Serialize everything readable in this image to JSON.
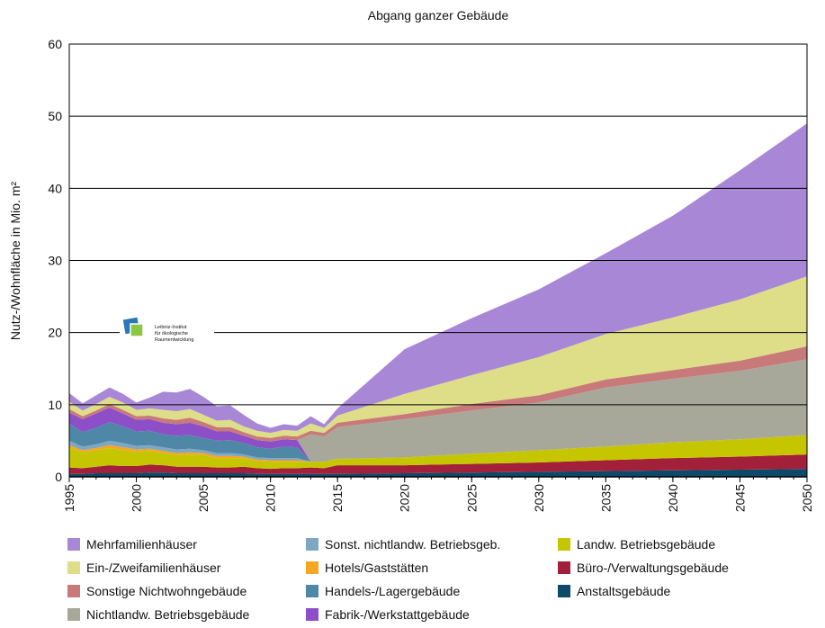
{
  "chart_data": {
    "type": "stacked_area",
    "title": "Abgang ganzer Gebäude",
    "ylabel": "Nutz-/Wohnfläche in Mio. m²",
    "logo": [
      "Leibniz-Institut",
      "für ökologische",
      "Raumentwicklung"
    ],
    "x": [
      1995,
      1996,
      1997,
      1998,
      1999,
      2000,
      2001,
      2002,
      2003,
      2004,
      2005,
      2006,
      2007,
      2008,
      2009,
      2010,
      2011,
      2012,
      2013,
      2014,
      2015,
      2020,
      2025,
      2030,
      2035,
      2040,
      2045,
      2050
    ],
    "xlim": [
      1995,
      2050
    ],
    "xticks": [
      1995,
      2000,
      2005,
      2010,
      2015,
      2020,
      2025,
      2030,
      2035,
      2040,
      2045,
      2050
    ],
    "ylim": [
      0,
      60
    ],
    "yticks": [
      0,
      10,
      20,
      30,
      40,
      50,
      60
    ],
    "grid": true,
    "series": [
      {
        "name": "Anstaltsgebäude",
        "color": "#0d4a6a",
        "values": [
          0.4,
          0.4,
          0.5,
          0.5,
          0.5,
          0.5,
          0.6,
          0.6,
          0.5,
          0.5,
          0.5,
          0.5,
          0.5,
          0.5,
          0.4,
          0.4,
          0.4,
          0.4,
          0.4,
          0.4,
          0.4,
          0.5,
          0.6,
          0.7,
          0.8,
          0.9,
          1.0,
          1.1
        ]
      },
      {
        "name": "Büro-/Verwaltungsgebäude",
        "color": "#a3203a",
        "values": [
          0.9,
          0.8,
          0.9,
          1.1,
          1.0,
          1.0,
          1.1,
          1.0,
          0.9,
          0.9,
          0.9,
          0.8,
          0.8,
          0.9,
          0.8,
          0.7,
          0.8,
          0.8,
          0.9,
          0.8,
          1.2,
          1.1,
          1.2,
          1.3,
          1.5,
          1.7,
          1.8,
          2.0
        ]
      },
      {
        "name": "Landw. Betriebsgebäude",
        "color": "#c6c600",
        "values": [
          2.7,
          2.2,
          2.3,
          2.4,
          2.2,
          2.0,
          1.9,
          1.7,
          1.6,
          1.7,
          1.6,
          1.3,
          1.3,
          1.2,
          1.0,
          1.0,
          0.9,
          0.9,
          0.8,
          0.9,
          0.9,
          1.1,
          1.4,
          1.7,
          1.9,
          2.2,
          2.4,
          2.7
        ]
      },
      {
        "name": "Hotels/Gaststätten",
        "color": "#f5a623",
        "values": [
          0.4,
          0.3,
          0.3,
          0.4,
          0.4,
          0.3,
          0.3,
          0.3,
          0.3,
          0.3,
          0.3,
          0.3,
          0.3,
          0.2,
          0.2,
          0.2,
          0.2,
          0.2,
          0,
          0,
          0,
          0,
          0,
          0,
          0,
          0,
          0,
          0
        ]
      },
      {
        "name": "Sonst. nichtlandw. Betriebsgeb.",
        "color": "#7fa6c2",
        "values": [
          0.6,
          0.5,
          0.5,
          0.6,
          0.6,
          0.5,
          0.5,
          0.5,
          0.5,
          0.5,
          0.4,
          0.4,
          0.4,
          0.3,
          0.3,
          0.3,
          0.3,
          0.3,
          0,
          0,
          0,
          0,
          0,
          0,
          0,
          0,
          0,
          0
        ]
      },
      {
        "name": "Handels-/Lagergebäude",
        "color": "#4e88a6",
        "values": [
          2.4,
          2.0,
          2.3,
          2.6,
          2.3,
          2.0,
          2.0,
          1.8,
          1.9,
          1.9,
          1.7,
          1.7,
          1.8,
          1.6,
          1.4,
          1.3,
          1.6,
          1.5,
          0,
          0,
          0,
          0,
          0,
          0,
          0,
          0,
          0,
          0
        ]
      },
      {
        "name": "Fabrik-/Werkstattgebäude",
        "color": "#8c4fc7",
        "values": [
          1.5,
          1.8,
          2.0,
          2.0,
          1.8,
          1.6,
          1.6,
          1.6,
          1.6,
          1.7,
          1.6,
          1.3,
          1.2,
          1.0,
          1.0,
          1.0,
          1.0,
          1.0,
          0,
          0,
          0,
          0,
          0,
          0,
          0,
          0,
          0,
          0
        ]
      },
      {
        "name": "Nichtlandw. Betriebsgebäude",
        "color": "#a8a89a",
        "values": [
          0,
          0,
          0,
          0,
          0,
          0,
          0,
          0,
          0,
          0,
          0,
          0,
          0,
          0,
          0,
          0,
          0,
          0,
          3.8,
          3.5,
          4.4,
          5.3,
          6.0,
          6.6,
          8.2,
          8.8,
          9.5,
          10.5
        ]
      },
      {
        "name": "Sonstige Nichtwohngebäude",
        "color": "#c87a7a",
        "values": [
          0.5,
          0.4,
          0.4,
          0.5,
          0.5,
          0.5,
          0.5,
          0.6,
          0.6,
          0.7,
          0.6,
          0.6,
          0.6,
          0.5,
          0.5,
          0.5,
          0.5,
          0.5,
          0.5,
          0.5,
          0.6,
          0.7,
          0.9,
          1.0,
          1.1,
          1.2,
          1.4,
          1.8
        ]
      },
      {
        "name": "Ein-/Zweifamilienhäuser",
        "color": "#dedd88",
        "values": [
          1.0,
          0.8,
          0.9,
          1.0,
          1.0,
          0.9,
          1.0,
          1.2,
          1.2,
          1.2,
          1.0,
          0.9,
          1.0,
          0.8,
          0.8,
          0.7,
          0.8,
          0.8,
          1.0,
          0.7,
          1.0,
          2.8,
          4.0,
          5.3,
          6.3,
          7.3,
          8.5,
          9.7
        ]
      },
      {
        "name": "Mehrfamilienhäuser",
        "color": "#a887d6",
        "values": [
          1.2,
          1.0,
          1.2,
          1.3,
          1.2,
          1.0,
          1.5,
          2.5,
          2.6,
          2.8,
          2.5,
          2.0,
          2.0,
          1.6,
          1.0,
          0.7,
          0.8,
          0.7,
          1.0,
          0.5,
          1.0,
          6.2,
          7.9,
          9.4,
          11.2,
          14.1,
          17.9,
          21.2
        ]
      }
    ]
  }
}
